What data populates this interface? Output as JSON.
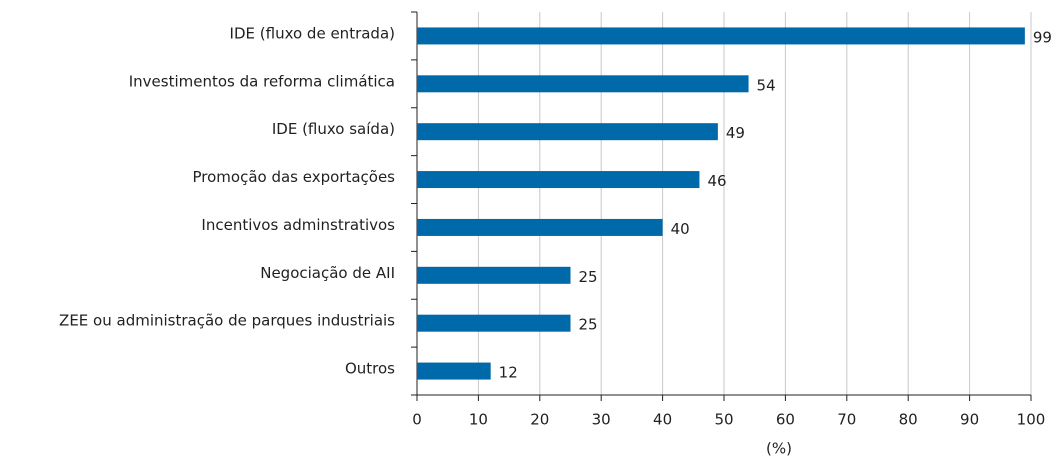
{
  "chart_data": {
    "type": "hbar",
    "categories": [
      "IDE (fluxo de entrada)",
      "Investimentos da reforma climática",
      "IDE (fluxo saída)",
      "Promoção das exportações",
      "Incentivos adminstrativos",
      "Negociação de AII",
      "ZEE ou administração de parques industriais",
      "Outros"
    ],
    "values": [
      99,
      54,
      49,
      46,
      40,
      25,
      25,
      12
    ],
    "color": "#0069a9",
    "xlabel": "(%)",
    "xlim": [
      0,
      100
    ],
    "xticks": [
      0,
      10,
      20,
      30,
      40,
      50,
      60,
      70,
      80,
      90,
      100
    ],
    "grid": true
  }
}
